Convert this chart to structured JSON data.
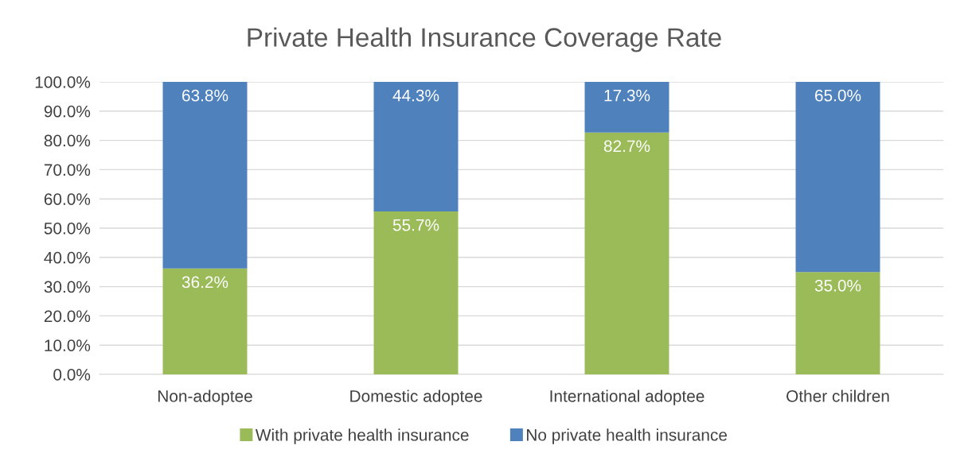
{
  "chart_data": {
    "type": "bar",
    "title": "Private Health Insurance Coverage Rate",
    "stacked": true,
    "categories": [
      "Non-adoptee",
      "Domestic adoptee",
      "International adoptee",
      "Other children"
    ],
    "series": [
      {
        "name": "With private health insurance",
        "color": "#9bbb59",
        "values": [
          36.2,
          55.7,
          82.7,
          35.0
        ],
        "value_labels": [
          "36.2%",
          "55.7%",
          "82.7%",
          "35.0%"
        ]
      },
      {
        "name": "No private health insurance",
        "color": "#4f81bd",
        "values": [
          63.8,
          44.3,
          17.3,
          65.0
        ],
        "value_labels": [
          "63.8%",
          "44.3%",
          "17.3%",
          "65.0%"
        ]
      }
    ],
    "ylim": [
      0,
      100
    ],
    "yticks": [
      {
        "value": 0,
        "label": "0.0%"
      },
      {
        "value": 10,
        "label": "10.0%"
      },
      {
        "value": 20,
        "label": "20.0%"
      },
      {
        "value": 30,
        "label": "30.0%"
      },
      {
        "value": 40,
        "label": "40.0%"
      },
      {
        "value": 50,
        "label": "50.0%"
      },
      {
        "value": 60,
        "label": "60.0%"
      },
      {
        "value": 70,
        "label": "70.0%"
      },
      {
        "value": 80,
        "label": "80.0%"
      },
      {
        "value": 90,
        "label": "90.0%"
      },
      {
        "value": 100,
        "label": "100.0%"
      }
    ],
    "grid": "y",
    "legend": "bottom"
  }
}
